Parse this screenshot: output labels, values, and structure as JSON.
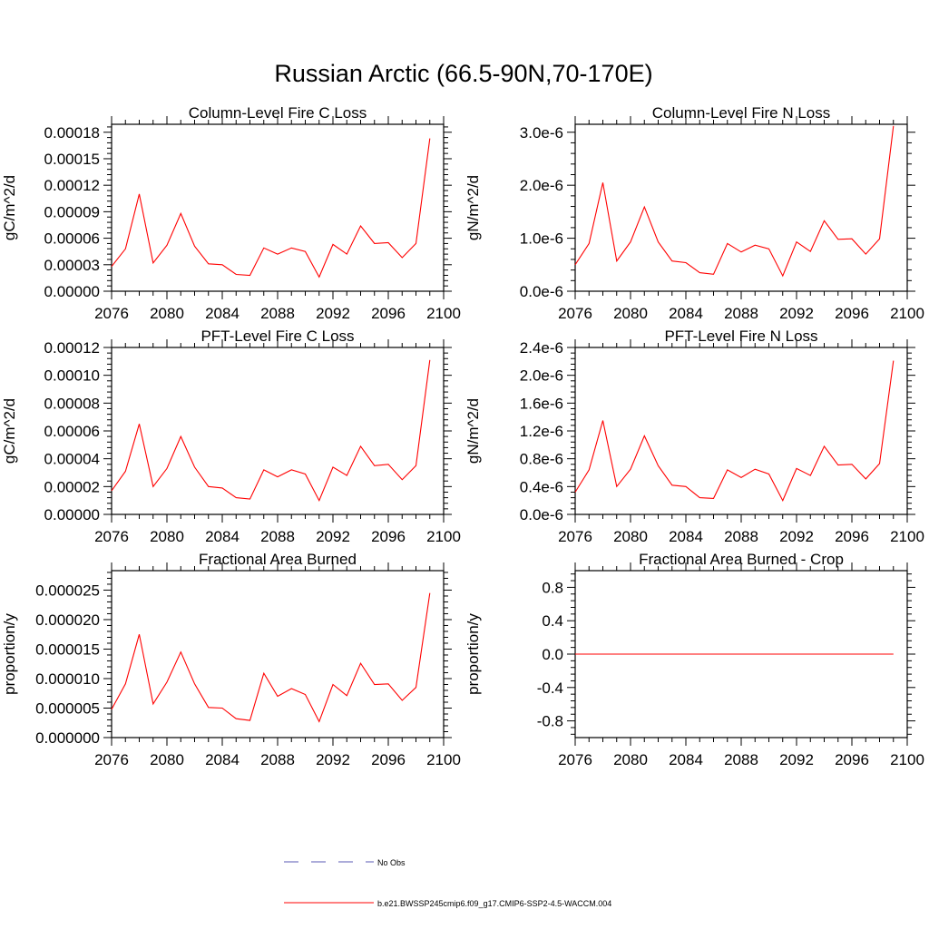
{
  "figure": {
    "title": "Russian Arctic (66.5-90N,70-170E)",
    "legend": [
      {
        "label": "No Obs",
        "color": "#5a5ab4",
        "dash": true
      },
      {
        "label": "b.e21.BWSSP245cmip6.f09_g17.CMIP6-SSP2-4.5-WACCM.004",
        "color": "#ff0000",
        "dash": false
      }
    ]
  },
  "chart_data": [
    {
      "type": "line",
      "title": "Column-Level Fire C Loss",
      "ylabel": "gC/m^2/d",
      "xlim": [
        2076,
        2100
      ],
      "xticks": [
        2076,
        2080,
        2084,
        2088,
        2092,
        2096,
        2100
      ],
      "ylim": [
        0,
        0.000189
      ],
      "yticks": [
        "0.00000",
        "0.00003",
        "0.00006",
        "0.00009",
        "0.00012",
        "0.00015",
        "0.00018"
      ],
      "yticks_values": [
        0,
        3e-05,
        6e-05,
        9e-05,
        0.00012,
        0.00015,
        0.00018
      ],
      "series": [
        {
          "color": "#ff0000",
          "x": [
            2076,
            2077,
            2078,
            2079,
            2080,
            2081,
            2082,
            2083,
            2084,
            2085,
            2086,
            2087,
            2088,
            2089,
            2090,
            2091,
            2092,
            2093,
            2094,
            2095,
            2096,
            2097,
            2098,
            2099
          ],
          "y": [
            2.8e-05,
            4.8e-05,
            0.00011,
            3.2e-05,
            5.2e-05,
            8.8e-05,
            5.1e-05,
            3.1e-05,
            3e-05,
            1.9e-05,
            1.8e-05,
            4.9e-05,
            4.2e-05,
            4.9e-05,
            4.5e-05,
            1.6e-05,
            5.3e-05,
            4.2e-05,
            7.4e-05,
            5.4e-05,
            5.5e-05,
            3.8e-05,
            5.4e-05,
            0.000173
          ]
        }
      ]
    },
    {
      "type": "line",
      "title": "Column-Level Fire N Loss",
      "ylabel": "gN/m^2/d",
      "xlim": [
        2076,
        2100
      ],
      "xticks": [
        2076,
        2080,
        2084,
        2088,
        2092,
        2096,
        2100
      ],
      "ylim": [
        0,
        3.15e-06
      ],
      "yticks": [
        "0.0e-6",
        "1.0e-6",
        "2.0e-6",
        "3.0e-6"
      ],
      "yticks_values": [
        0,
        1e-06,
        2e-06,
        3e-06
      ],
      "series": [
        {
          "color": "#ff0000",
          "x": [
            2076,
            2077,
            2078,
            2079,
            2080,
            2081,
            2082,
            2083,
            2084,
            2085,
            2086,
            2087,
            2088,
            2089,
            2090,
            2091,
            2092,
            2093,
            2094,
            2095,
            2096,
            2097,
            2098,
            2099
          ],
          "y": [
            5e-07,
            9e-07,
            2.05e-06,
            5.7e-07,
            9.3e-07,
            1.59e-06,
            9.3e-07,
            5.7e-07,
            5.4e-07,
            3.5e-07,
            3.2e-07,
            9e-07,
            7.4e-07,
            8.7e-07,
            8e-07,
            2.9e-07,
            9.3e-07,
            7.5e-07,
            1.33e-06,
            9.8e-07,
            9.9e-07,
            7e-07,
            9.9e-07,
            3.12e-06
          ]
        }
      ]
    },
    {
      "type": "line",
      "title": "PFT-Level Fire C Loss",
      "ylabel": "gC/m^2/d",
      "xlim": [
        2076,
        2100
      ],
      "xticks": [
        2076,
        2080,
        2084,
        2088,
        2092,
        2096,
        2100
      ],
      "ylim": [
        0,
        0.00012
      ],
      "yticks": [
        "0.00000",
        "0.00002",
        "0.00004",
        "0.00006",
        "0.00008",
        "0.00010",
        "0.00012"
      ],
      "yticks_values": [
        0,
        2e-05,
        4e-05,
        6e-05,
        8e-05,
        0.0001,
        0.00012
      ],
      "series": [
        {
          "color": "#ff0000",
          "x": [
            2076,
            2077,
            2078,
            2079,
            2080,
            2081,
            2082,
            2083,
            2084,
            2085,
            2086,
            2087,
            2088,
            2089,
            2090,
            2091,
            2092,
            2093,
            2094,
            2095,
            2096,
            2097,
            2098,
            2099
          ],
          "y": [
            1.7e-05,
            3.1e-05,
            6.5e-05,
            2e-05,
            3.3e-05,
            5.6e-05,
            3.4e-05,
            2e-05,
            1.9e-05,
            1.2e-05,
            1.1e-05,
            3.2e-05,
            2.7e-05,
            3.2e-05,
            2.9e-05,
            1e-05,
            3.4e-05,
            2.8e-05,
            4.9e-05,
            3.5e-05,
            3.6e-05,
            2.5e-05,
            3.5e-05,
            0.000111
          ]
        }
      ]
    },
    {
      "type": "line",
      "title": "PFT-Level Fire N Loss",
      "ylabel": "gN/m^2/d",
      "xlim": [
        2076,
        2100
      ],
      "xticks": [
        2076,
        2080,
        2084,
        2088,
        2092,
        2096,
        2100
      ],
      "ylim": [
        0,
        2.4e-06
      ],
      "yticks": [
        "0.0e-6",
        "0.4e-6",
        "0.8e-6",
        "1.2e-6",
        "1.6e-6",
        "2.0e-6",
        "2.4e-6"
      ],
      "yticks_values": [
        0,
        4e-07,
        8e-07,
        1.2e-06,
        1.6e-06,
        2e-06,
        2.4e-06
      ],
      "series": [
        {
          "color": "#ff0000",
          "x": [
            2076,
            2077,
            2078,
            2079,
            2080,
            2081,
            2082,
            2083,
            2084,
            2085,
            2086,
            2087,
            2088,
            2089,
            2090,
            2091,
            2092,
            2093,
            2094,
            2095,
            2096,
            2097,
            2098,
            2099
          ],
          "y": [
            3.2e-07,
            6.4e-07,
            1.35e-06,
            4e-07,
            6.5e-07,
            1.13e-06,
            7e-07,
            4.2e-07,
            4e-07,
            2.4e-07,
            2.3e-07,
            6.4e-07,
            5.3e-07,
            6.5e-07,
            5.8e-07,
            2e-07,
            6.6e-07,
            5.6e-07,
            9.8e-07,
            7.1e-07,
            7.2e-07,
            5.1e-07,
            7.3e-07,
            2.21e-06
          ]
        }
      ]
    },
    {
      "type": "line",
      "title": "Fractional Area Burned",
      "ylabel": "proportion/y",
      "xlim": [
        2076,
        2100
      ],
      "xticks": [
        2076,
        2080,
        2084,
        2088,
        2092,
        2096,
        2100
      ],
      "ylim": [
        0,
        2.83e-05
      ],
      "yticks": [
        "0.000000",
        "0.000005",
        "0.000010",
        "0.000015",
        "0.000020",
        "0.000025"
      ],
      "yticks_values": [
        0,
        5e-06,
        1e-05,
        1.5e-05,
        2e-05,
        2.5e-05
      ],
      "series": [
        {
          "color": "#ff0000",
          "x": [
            2076,
            2077,
            2078,
            2079,
            2080,
            2081,
            2082,
            2083,
            2084,
            2085,
            2086,
            2087,
            2088,
            2089,
            2090,
            2091,
            2092,
            2093,
            2094,
            2095,
            2096,
            2097,
            2098,
            2099
          ],
          "y": [
            4.8e-06,
            9.1e-06,
            1.75e-05,
            5.7e-06,
            9.4e-06,
            1.45e-05,
            9.1e-06,
            5.1e-06,
            5e-06,
            3.2e-06,
            2.9e-06,
            1.09e-05,
            7e-06,
            8.3e-06,
            7.3e-06,
            2.7e-06,
            9e-06,
            7.1e-06,
            1.26e-05,
            9e-06,
            9.1e-06,
            6.3e-06,
            8.5e-06,
            2.45e-05
          ]
        }
      ]
    },
    {
      "type": "line",
      "title": "Fractional Area Burned - Crop",
      "ylabel": "proportion/y",
      "xlim": [
        2076,
        2100
      ],
      "xticks": [
        2076,
        2080,
        2084,
        2088,
        2092,
        2096,
        2100
      ],
      "ylim": [
        -1.0,
        1.0
      ],
      "yticks": [
        "-0.8",
        "-0.4",
        "0.0",
        "0.4",
        "0.8"
      ],
      "yticks_values": [
        -0.8,
        -0.4,
        0.0,
        0.4,
        0.8
      ],
      "series": [
        {
          "color": "#ff0000",
          "x": [
            2076,
            2077,
            2078,
            2079,
            2080,
            2081,
            2082,
            2083,
            2084,
            2085,
            2086,
            2087,
            2088,
            2089,
            2090,
            2091,
            2092,
            2093,
            2094,
            2095,
            2096,
            2097,
            2098,
            2099
          ],
          "y": [
            0,
            0,
            0,
            0,
            0,
            0,
            0,
            0,
            0,
            0,
            0,
            0,
            0,
            0,
            0,
            0,
            0,
            0,
            0,
            0,
            0,
            0,
            0,
            0
          ]
        }
      ]
    }
  ]
}
